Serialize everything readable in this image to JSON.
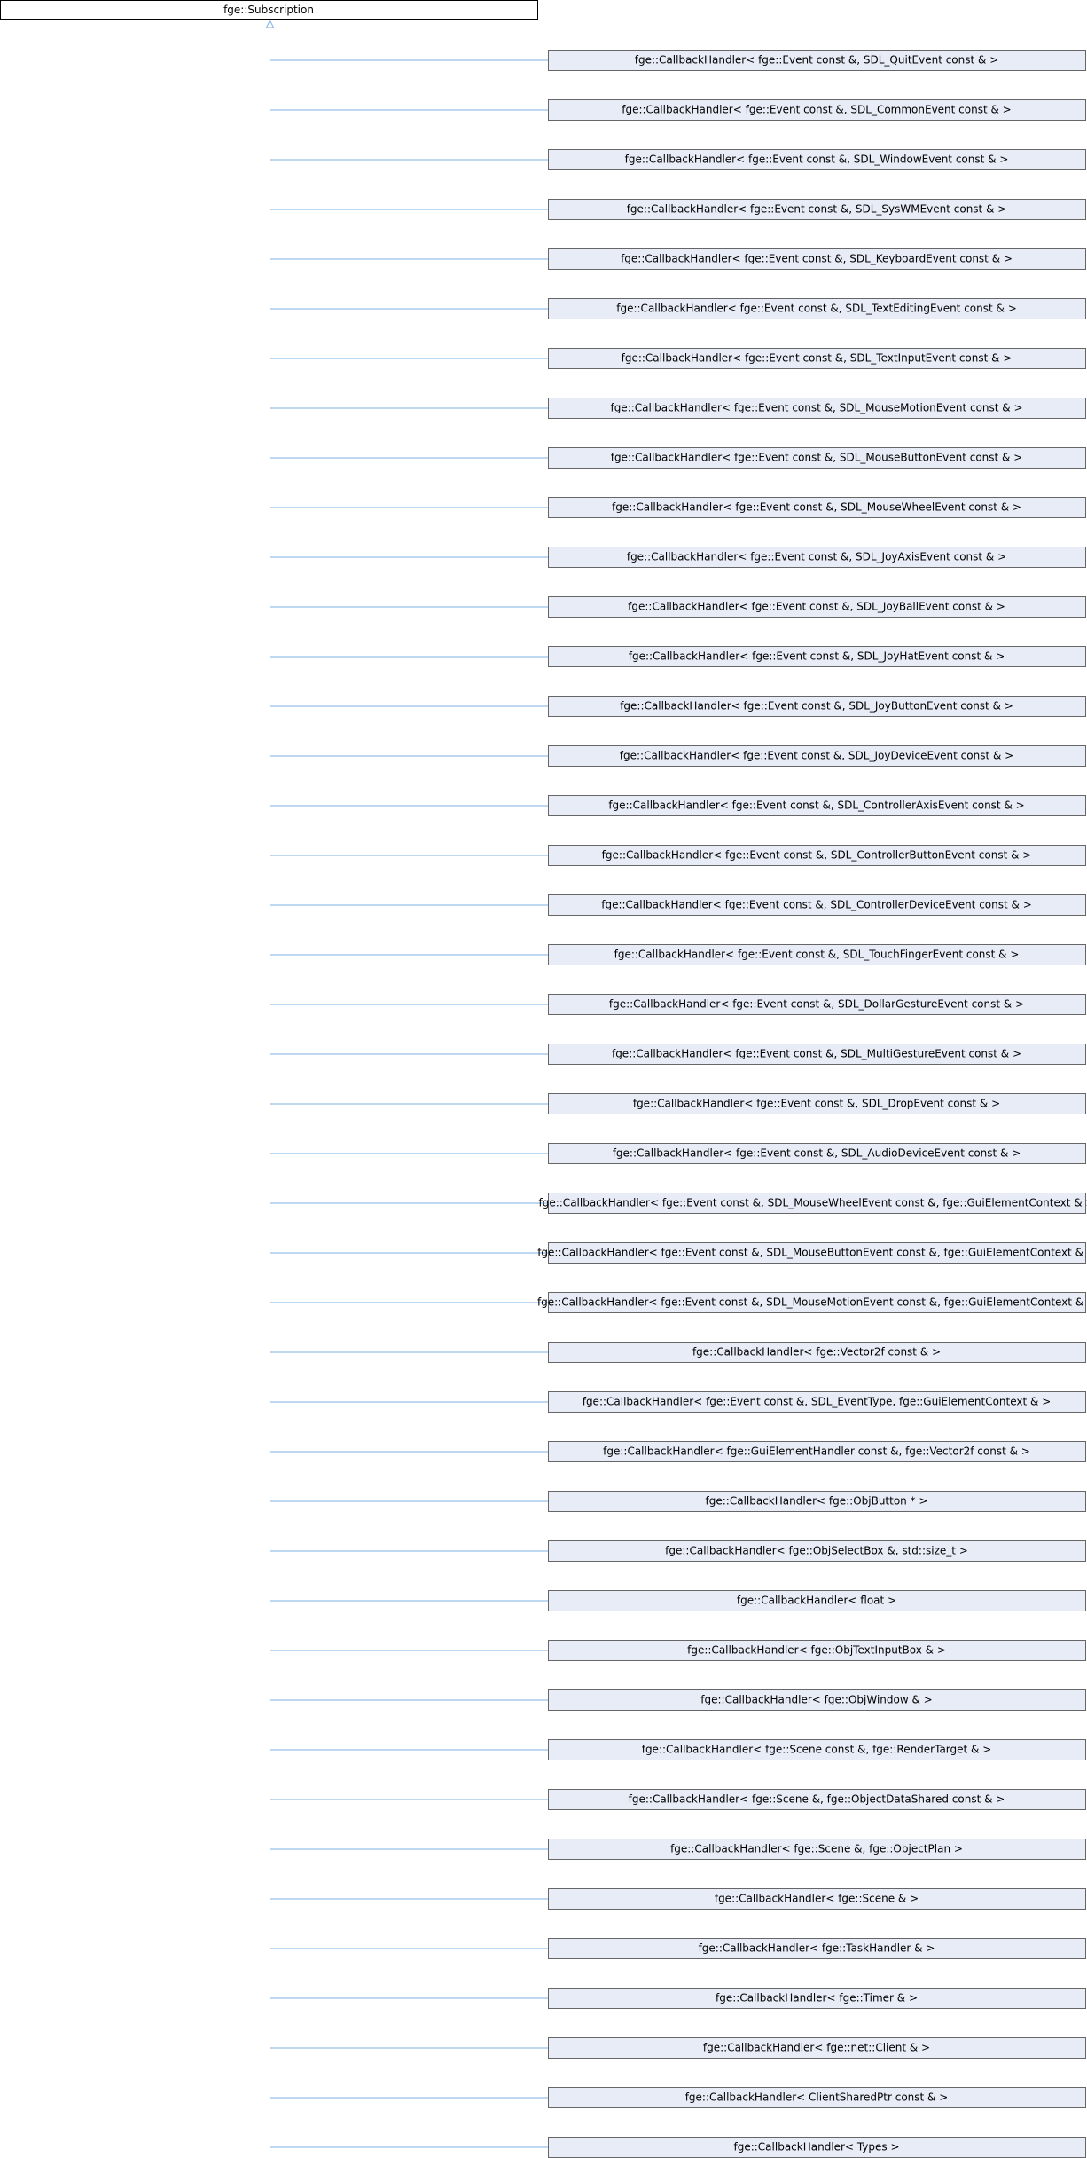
{
  "root": {
    "label": "fge::Subscription"
  },
  "children": [
    {
      "label": "fge::CallbackHandler< fge::Event const &, SDL_QuitEvent const & >"
    },
    {
      "label": "fge::CallbackHandler< fge::Event const &, SDL_CommonEvent const & >"
    },
    {
      "label": "fge::CallbackHandler< fge::Event const &, SDL_WindowEvent const & >"
    },
    {
      "label": "fge::CallbackHandler< fge::Event const &, SDL_SysWMEvent const & >"
    },
    {
      "label": "fge::CallbackHandler< fge::Event const &, SDL_KeyboardEvent const & >"
    },
    {
      "label": "fge::CallbackHandler< fge::Event const &, SDL_TextEditingEvent const & >"
    },
    {
      "label": "fge::CallbackHandler< fge::Event const &, SDL_TextInputEvent const & >"
    },
    {
      "label": "fge::CallbackHandler< fge::Event const &, SDL_MouseMotionEvent const & >"
    },
    {
      "label": "fge::CallbackHandler< fge::Event const &, SDL_MouseButtonEvent const & >"
    },
    {
      "label": "fge::CallbackHandler< fge::Event const &, SDL_MouseWheelEvent const & >"
    },
    {
      "label": "fge::CallbackHandler< fge::Event const &, SDL_JoyAxisEvent const & >"
    },
    {
      "label": "fge::CallbackHandler< fge::Event const &, SDL_JoyBallEvent const & >"
    },
    {
      "label": "fge::CallbackHandler< fge::Event const &, SDL_JoyHatEvent const & >"
    },
    {
      "label": "fge::CallbackHandler< fge::Event const &, SDL_JoyButtonEvent const & >"
    },
    {
      "label": "fge::CallbackHandler< fge::Event const &, SDL_JoyDeviceEvent const & >"
    },
    {
      "label": "fge::CallbackHandler< fge::Event const &, SDL_ControllerAxisEvent const & >"
    },
    {
      "label": "fge::CallbackHandler< fge::Event const &, SDL_ControllerButtonEvent const & >"
    },
    {
      "label": "fge::CallbackHandler< fge::Event const &, SDL_ControllerDeviceEvent const & >"
    },
    {
      "label": "fge::CallbackHandler< fge::Event const &, SDL_TouchFingerEvent const & >"
    },
    {
      "label": "fge::CallbackHandler< fge::Event const &, SDL_DollarGestureEvent const & >"
    },
    {
      "label": "fge::CallbackHandler< fge::Event const &, SDL_MultiGestureEvent const & >"
    },
    {
      "label": "fge::CallbackHandler< fge::Event const &, SDL_DropEvent const & >"
    },
    {
      "label": "fge::CallbackHandler< fge::Event const &, SDL_AudioDeviceEvent const & >"
    },
    {
      "label": "fge::CallbackHandler< fge::Event const &, SDL_MouseWheelEvent const &, fge::GuiElementContext & >"
    },
    {
      "label": "fge::CallbackHandler< fge::Event const &, SDL_MouseButtonEvent const &, fge::GuiElementContext & >"
    },
    {
      "label": "fge::CallbackHandler< fge::Event const &, SDL_MouseMotionEvent const &, fge::GuiElementContext & >"
    },
    {
      "label": "fge::CallbackHandler< fge::Vector2f const & >"
    },
    {
      "label": "fge::CallbackHandler< fge::Event const &, SDL_EventType, fge::GuiElementContext & >"
    },
    {
      "label": "fge::CallbackHandler< fge::GuiElementHandler const &, fge::Vector2f const & >"
    },
    {
      "label": "fge::CallbackHandler< fge::ObjButton * >"
    },
    {
      "label": "fge::CallbackHandler< fge::ObjSelectBox &, std::size_t >"
    },
    {
      "label": "fge::CallbackHandler< float >"
    },
    {
      "label": "fge::CallbackHandler< fge::ObjTextInputBox & >"
    },
    {
      "label": "fge::CallbackHandler< fge::ObjWindow & >"
    },
    {
      "label": "fge::CallbackHandler< fge::Scene const &, fge::RenderTarget & >"
    },
    {
      "label": "fge::CallbackHandler< fge::Scene &, fge::ObjectDataShared const & >"
    },
    {
      "label": "fge::CallbackHandler< fge::Scene &, fge::ObjectPlan >"
    },
    {
      "label": "fge::CallbackHandler< fge::Scene & >"
    },
    {
      "label": "fge::CallbackHandler< fge::TaskHandler & >"
    },
    {
      "label": "fge::CallbackHandler< fge::Timer & >"
    },
    {
      "label": "fge::CallbackHandler< fge::net::Client & >"
    },
    {
      "label": "fge::CallbackHandler< ClientSharedPtr const & >"
    },
    {
      "label": "fge::CallbackHandler< Types >"
    }
  ]
}
